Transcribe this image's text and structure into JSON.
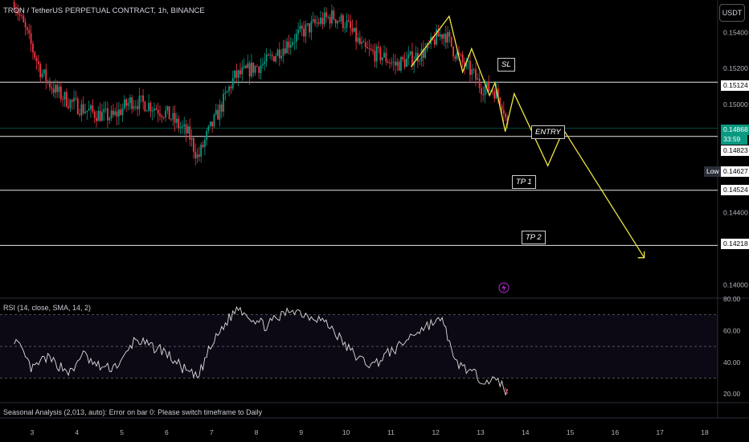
{
  "header": {
    "title": "TRON / TetherUS PERPETUAL CONTRACT, 1h, BINANCE",
    "currency_button": "USDT"
  },
  "price_labels": {
    "sl_level": "0.15124",
    "current_price": "0.14868",
    "countdown": "33:59",
    "entry_level": "0.14823",
    "low_label": "Low",
    "low_price": "0.14627",
    "tp1_level": "0.14524",
    "tp2_level": "0.14218"
  },
  "annotations": {
    "sl": "SL",
    "entry": "ENTRY",
    "tp1": "TP 1",
    "tp2": "TP 2"
  },
  "indicators": {
    "rsi_title": "RSI (14, close, SMA, 14, 2)",
    "seasonal_error": "Seasonal Analysis (2,013, auto): Error on bar 0: Please switch timeframe to Daily"
  },
  "colors": {
    "up": "#089981",
    "down": "#f23645",
    "projection": "#f0e442",
    "rsi_line": "#dddddd",
    "rsi_band": "#7e57c2"
  },
  "chart_data": {
    "type": "candlestick",
    "x_tick_labels": [
      "3",
      "4",
      "5",
      "6",
      "7",
      "8",
      "9",
      "10",
      "11",
      "12",
      "13",
      "14",
      "15",
      "16",
      "17",
      "18"
    ],
    "y_tick_labels": [
      "0.15400",
      "0.15200",
      "0.15000",
      "0.14400",
      "0.14000"
    ],
    "ylim": [
      0.1393,
      0.1558
    ],
    "horizontal_levels": [
      {
        "name": "SL",
        "value": 0.15124
      },
      {
        "name": "ENTRY",
        "value": 0.14823
      },
      {
        "name": "TP 1",
        "value": 0.14524
      },
      {
        "name": "TP 2",
        "value": 0.14218
      }
    ],
    "current_price": 0.14868,
    "session_low": 0.14627,
    "price_path": [
      [
        2.6,
        0.1557
      ],
      [
        2.9,
        0.1538
      ],
      [
        3.2,
        0.1518
      ],
      [
        3.5,
        0.1508
      ],
      [
        3.8,
        0.1502
      ],
      [
        4.1,
        0.1498
      ],
      [
        4.4,
        0.1495
      ],
      [
        4.8,
        0.1493
      ],
      [
        5.2,
        0.1502
      ],
      [
        5.6,
        0.15
      ],
      [
        6.0,
        0.1495
      ],
      [
        6.2,
        0.149
      ],
      [
        6.5,
        0.1483
      ],
      [
        6.7,
        0.147
      ],
      [
        6.9,
        0.1483
      ],
      [
        7.2,
        0.1498
      ],
      [
        7.5,
        0.1515
      ],
      [
        7.9,
        0.152
      ],
      [
        8.2,
        0.1523
      ],
      [
        8.6,
        0.1532
      ],
      [
        9.0,
        0.154
      ],
      [
        9.4,
        0.1546
      ],
      [
        9.7,
        0.1549
      ],
      [
        10.0,
        0.1545
      ],
      [
        10.4,
        0.153
      ],
      [
        10.8,
        0.1527
      ],
      [
        11.1,
        0.1522
      ],
      [
        11.5,
        0.1526
      ],
      [
        11.8,
        0.153
      ],
      [
        12.0,
        0.1537
      ],
      [
        12.2,
        0.154
      ],
      [
        12.4,
        0.153
      ],
      [
        12.6,
        0.1523
      ],
      [
        12.8,
        0.1518
      ],
      [
        13.0,
        0.151
      ],
      [
        13.3,
        0.1508
      ],
      [
        13.5,
        0.15
      ],
      [
        13.6,
        0.1487
      ]
    ],
    "projection_path": [
      [
        11.45,
        0.1521
      ],
      [
        12.3,
        0.1549
      ],
      [
        12.6,
        0.1518
      ],
      [
        12.8,
        0.1531
      ],
      [
        13.2,
        0.1505
      ],
      [
        13.32,
        0.1512
      ],
      [
        13.55,
        0.1485
      ],
      [
        13.75,
        0.1506
      ],
      [
        14.5,
        0.1466
      ],
      [
        14.85,
        0.1486
      ],
      [
        16.65,
        0.1415
      ]
    ],
    "rsi": {
      "ylim": [
        15,
        80
      ],
      "y_tick_labels": [
        "80.00",
        "60.00",
        "40.00",
        "20.00"
      ],
      "bands": [
        70,
        50,
        30
      ],
      "path": [
        [
          2.6,
          55
        ],
        [
          2.8,
          45
        ],
        [
          3.0,
          35
        ],
        [
          3.3,
          43
        ],
        [
          3.6,
          38
        ],
        [
          3.9,
          33
        ],
        [
          4.1,
          46
        ],
        [
          4.4,
          38
        ],
        [
          4.7,
          36
        ],
        [
          5.0,
          40
        ],
        [
          5.3,
          55
        ],
        [
          5.6,
          50
        ],
        [
          5.9,
          48
        ],
        [
          6.2,
          40
        ],
        [
          6.5,
          33
        ],
        [
          6.7,
          30
        ],
        [
          6.9,
          45
        ],
        [
          7.2,
          60
        ],
        [
          7.4,
          68
        ],
        [
          7.6,
          75
        ],
        [
          7.9,
          68
        ],
        [
          8.2,
          63
        ],
        [
          8.5,
          68
        ],
        [
          8.8,
          74
        ],
        [
          9.1,
          70
        ],
        [
          9.4,
          68
        ],
        [
          9.7,
          61
        ],
        [
          10.0,
          50
        ],
        [
          10.3,
          42
        ],
        [
          10.6,
          38
        ],
        [
          10.9,
          45
        ],
        [
          11.2,
          50
        ],
        [
          11.5,
          58
        ],
        [
          11.8,
          63
        ],
        [
          12.0,
          66
        ],
        [
          12.2,
          65
        ],
        [
          12.4,
          40
        ],
        [
          12.6,
          38
        ],
        [
          12.8,
          33
        ],
        [
          13.0,
          30
        ],
        [
          13.3,
          28
        ],
        [
          13.5,
          26
        ],
        [
          13.6,
          20
        ]
      ]
    }
  }
}
